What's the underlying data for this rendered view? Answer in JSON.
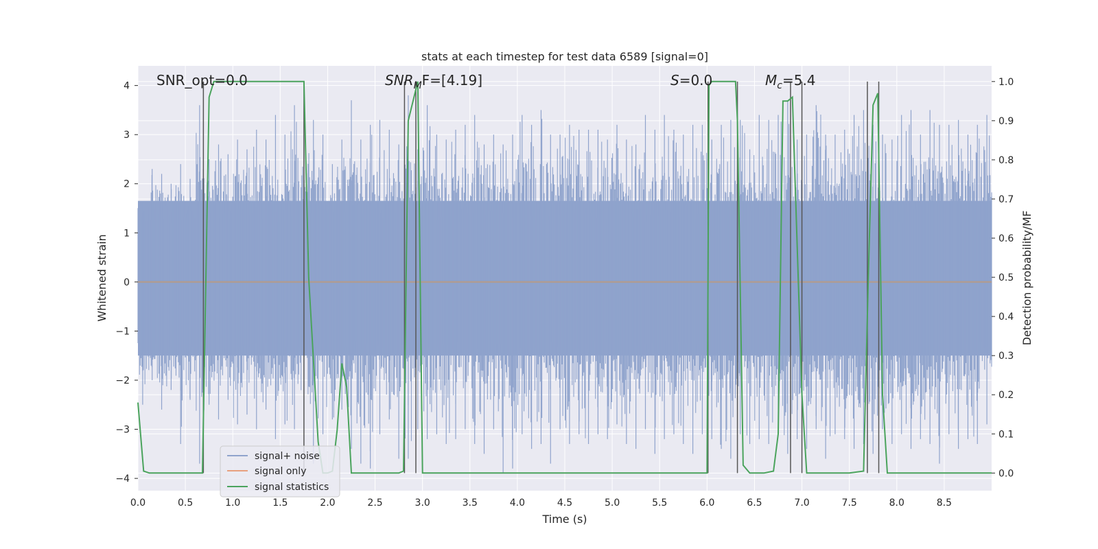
{
  "chart_data": {
    "type": "line",
    "title": "stats at each timestep for test data 6589 [signal=0]",
    "xlabel": "Time (s)",
    "ylabel": "Whitened strain",
    "ylabel_right": "Detection probability/MF",
    "xlim": [
      0.0,
      9.0
    ],
    "ylim": [
      -4.25,
      4.4
    ],
    "ylim_right": [
      -0.045,
      1.04
    ],
    "x_ticks": [
      "0.0",
      "0.5",
      "1.0",
      "1.5",
      "2.0",
      "2.5",
      "3.0",
      "3.5",
      "4.0",
      "4.5",
      "5.0",
      "5.5",
      "6.0",
      "6.5",
      "7.0",
      "7.5",
      "8.0",
      "8.5"
    ],
    "y_ticks": [
      "4",
      "3",
      "2",
      "1",
      "0",
      "−1",
      "−2",
      "−3",
      "−4"
    ],
    "y_right_ticks": [
      "1.0",
      "0.9",
      "0.8",
      "0.7",
      "0.6",
      "0.5",
      "0.4",
      "0.3",
      "0.2",
      "0.1",
      "0.0"
    ],
    "grid": true,
    "legend_position": "lower-left",
    "annotations": {
      "snr_opt": "SNR_opt=0.0",
      "snr_mf_label": "SNR",
      "snr_mf_sub": "M",
      "snr_mf_rest": "F=[4.19]",
      "s_label": "S",
      "s_rest": "=0.0",
      "mc_label": "M",
      "mc_sub": "c",
      "mc_rest": "=5.4"
    },
    "series": [
      {
        "name": "signal+ noise",
        "color": "#8fa3cc",
        "style": "noise-band",
        "envelope_upper": [
          1.6,
          2.3,
          2.2,
          2.0,
          2.4,
          2.1,
          3.6,
          2.5,
          2.8,
          2.6,
          2.9,
          2.7,
          3.1,
          2.9,
          3.4,
          3.0,
          3.6,
          3.0,
          3.3,
          3.0,
          2.4,
          2.9,
          3.7,
          2.9,
          3.2,
          3.3,
          3.1,
          2.8,
          3.8,
          2.7,
          3.6,
          3.0,
          2.9,
          3.1,
          3.2,
          3.4,
          2.8,
          3.0,
          2.8,
          3.0,
          3.4,
          3.2,
          3.5,
          3.0,
          3.0,
          3.2,
          3.1,
          3.1,
          3.1,
          2.9,
          3.2,
          2.9,
          2.8,
          3.4,
          3.1,
          3.4,
          3.1,
          3.0,
          3.2,
          3.2,
          2.9,
          3.2,
          3.3,
          3.3,
          2.7,
          3.4,
          3.3,
          3.4,
          3.7,
          2.9,
          3.0,
          3.6,
          3.0,
          3.0,
          3.1,
          3.4,
          3.5,
          3.2,
          3.0,
          2.9,
          3.4,
          3.5,
          3.0,
          3.5,
          3.2,
          3.2,
          3.3,
          3.0,
          3.2,
          3.4
        ],
        "envelope_lower": [
          -2.5,
          -2.0,
          -2.6,
          -2.2,
          -3.3,
          -2.4,
          -3.7,
          -2.5,
          -2.8,
          -2.4,
          -2.9,
          -2.7,
          -3.0,
          -2.6,
          -3.2,
          -2.9,
          -3.0,
          -2.6,
          -3.7,
          -3.1,
          -2.8,
          -2.6,
          -3.4,
          -3.7,
          -3.8,
          -3.1,
          -2.8,
          -3.6,
          -3.6,
          -3.0,
          -3.2,
          -3.1,
          -3.3,
          -3.2,
          -3.0,
          -3.3,
          -3.5,
          -3.0,
          -3.9,
          -3.8,
          -3.1,
          -3.4,
          -3.3,
          -3.7,
          -3.0,
          -3.3,
          -3.1,
          -3.3,
          -3.1,
          -3.2,
          -2.9,
          -3.3,
          -3.4,
          -3.0,
          -3.5,
          -3.2,
          -3.1,
          -3.3,
          -3.5,
          -3.1,
          -3.2,
          -3.4,
          -3.6,
          -3.1,
          -3.3,
          -3.2,
          -3.3,
          -3.0,
          -3.5,
          -3.2,
          -3.4,
          -3.0,
          -3.6,
          -3.1,
          -3.2,
          -3.4,
          -3.3,
          -3.5,
          -3.0,
          -3.3,
          -3.1,
          -3.4,
          -3.2,
          -3.3,
          -3.7,
          -3.1,
          -3.4,
          -3.2,
          -3.3,
          -2.9
        ]
      },
      {
        "name": "signal only",
        "color": "#e8a07e",
        "x": [
          0.0,
          9.0
        ],
        "y": [
          0.0,
          0.0
        ]
      },
      {
        "name": "signal statistics",
        "color": "#4aa35c",
        "axis": "right",
        "x": [
          0.0,
          0.06,
          0.12,
          0.2,
          0.3,
          0.5,
          0.68,
          0.75,
          0.8,
          0.85,
          1.0,
          1.5,
          1.75,
          1.8,
          1.9,
          1.95,
          2.0,
          2.05,
          2.1,
          2.15,
          2.2,
          2.25,
          2.3,
          2.5,
          2.75,
          2.8,
          2.85,
          2.95,
          3.0,
          3.05,
          3.1,
          3.5,
          4.0,
          5.0,
          6.0,
          6.02,
          6.05,
          6.1,
          6.2,
          6.3,
          6.32,
          6.38,
          6.45,
          6.5,
          6.6,
          6.7,
          6.75,
          6.8,
          6.85,
          6.9,
          7.0,
          7.05,
          7.1,
          7.15,
          7.2,
          7.5,
          7.65,
          7.7,
          7.75,
          7.8,
          7.85,
          7.9,
          7.95,
          8.0,
          8.5,
          9.0
        ],
        "y": [
          0.18,
          0.005,
          0.0,
          0.0,
          0.0,
          0.0,
          0.0,
          0.96,
          1.0,
          1.0,
          1.0,
          1.0,
          1.0,
          0.5,
          0.08,
          0.0,
          0.0,
          0.005,
          0.11,
          0.28,
          0.22,
          0.0,
          0.0,
          0.0,
          0.0,
          0.005,
          0.9,
          1.0,
          0.0,
          0.0,
          0.0,
          0.0,
          0.0,
          0.0,
          0.0,
          0.99,
          1.0,
          1.0,
          1.0,
          1.0,
          0.9,
          0.02,
          0.0,
          0.0,
          0.0,
          0.005,
          0.1,
          0.95,
          0.95,
          0.96,
          0.2,
          0.0,
          0.0,
          0.0,
          0.0,
          0.0,
          0.005,
          0.5,
          0.94,
          0.97,
          0.2,
          0.0,
          0.0,
          0.0,
          0.0,
          0.0
        ]
      }
    ],
    "vertical_lines_x": [
      0.69,
      1.75,
      2.81,
      2.93,
      6.01,
      6.32,
      6.88,
      7.0,
      7.69,
      7.81
    ]
  }
}
